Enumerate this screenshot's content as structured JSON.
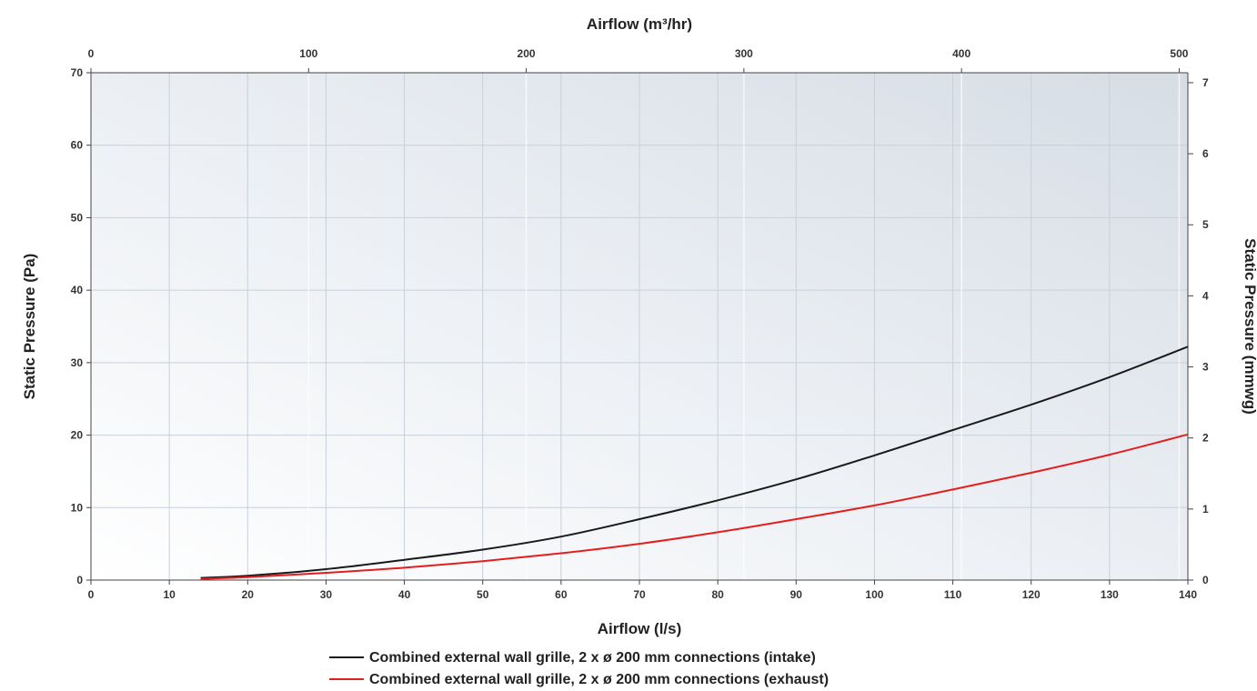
{
  "chart_data": {
    "type": "line",
    "title": "",
    "xlabel": "Airflow (l/s)",
    "x2label": "Airflow (m³/hr)",
    "ylabel": "Static Pressure (Pa)",
    "y2label": "Static Pressure (mmwg)",
    "xlim": [
      0,
      140
    ],
    "ylim": [
      0,
      70
    ],
    "x2lim": [
      0,
      504
    ],
    "y2lim": [
      0,
      7.14
    ],
    "x_ticks": [
      0,
      10,
      20,
      30,
      40,
      50,
      60,
      70,
      80,
      90,
      100,
      110,
      120,
      130,
      140
    ],
    "y_ticks": [
      0,
      10,
      20,
      30,
      40,
      50,
      60,
      70
    ],
    "x2_ticks": [
      0,
      100,
      200,
      300,
      400,
      500
    ],
    "y2_ticks": [
      0,
      1,
      2,
      3,
      4,
      5,
      6,
      7
    ],
    "grid": true,
    "legend_position": "bottom-center",
    "series": [
      {
        "name": "Combined external wall grille, 2 x ø 200 mm connections (intake)",
        "color": "#1a1a1a",
        "x": [
          14,
          20,
          30,
          40,
          50,
          60,
          70,
          80,
          90,
          100,
          110,
          120,
          130,
          140
        ],
        "y": [
          0.3,
          0.6,
          1.5,
          2.8,
          4.2,
          6.0,
          8.4,
          11.0,
          13.9,
          17.2,
          20.7,
          24.2,
          28.0,
          32.2
        ]
      },
      {
        "name": "Combined external wall grille, 2 x ø 200 mm connections (exhaust)",
        "color": "#e41e1e",
        "x": [
          14,
          20,
          30,
          40,
          50,
          60,
          70,
          80,
          90,
          100,
          110,
          120,
          130,
          140
        ],
        "y": [
          0.15,
          0.4,
          1.0,
          1.7,
          2.6,
          3.7,
          5.0,
          6.6,
          8.4,
          10.3,
          12.5,
          14.8,
          17.3,
          20.1
        ]
      }
    ]
  }
}
